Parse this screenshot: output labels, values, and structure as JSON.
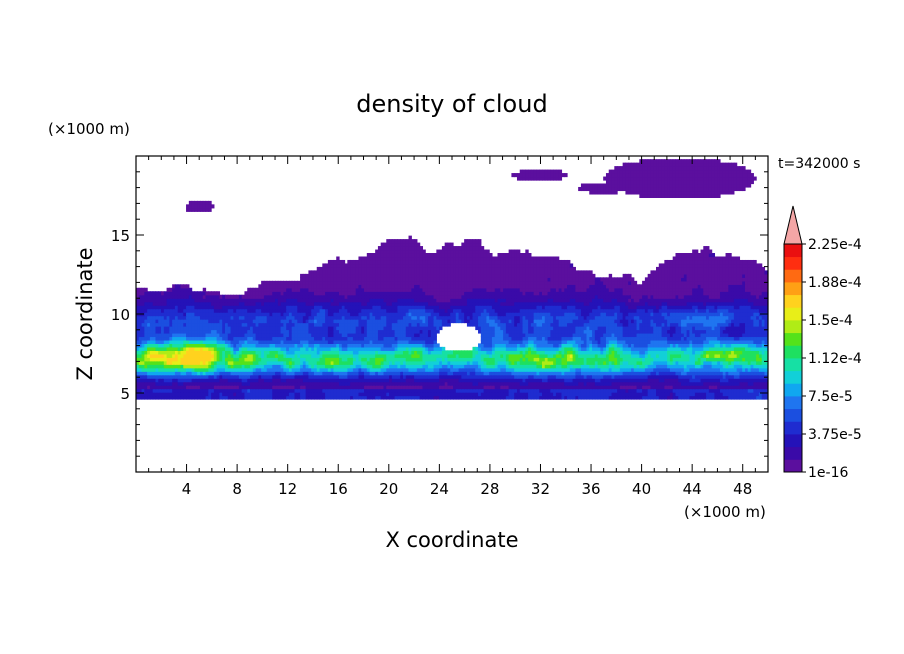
{
  "chart_data": {
    "type": "heatmap",
    "title": "density of cloud",
    "xlabel": "X coordinate",
    "ylabel": "Z coordinate",
    "x_unit": "(×1000 m)",
    "y_unit": "(×1000 m)",
    "time_label": "t=342000 s",
    "xlim": [
      0,
      50
    ],
    "ylim": [
      0,
      20
    ],
    "x_ticks": [
      4,
      8,
      12,
      16,
      20,
      24,
      28,
      32,
      36,
      40,
      44,
      48
    ],
    "y_ticks": [
      5,
      10,
      15
    ],
    "colorbar": {
      "levels_bottom_to_top": [
        "#5b0f9e",
        "#3a0aa8",
        "#2412b8",
        "#1f2cd0",
        "#1b4fe0",
        "#1f75f0",
        "#10a7f0",
        "#12d0d8",
        "#16e0a4",
        "#1ee060",
        "#54e21a",
        "#b0ec16",
        "#e8ee18",
        "#ffd21e",
        "#ffa015",
        "#ff6a12",
        "#ff2e10",
        "#ea0f10"
      ],
      "over_color": "#f4a6a6",
      "tick_labels": [
        "1e-16",
        "3.75e-5",
        "7.5e-5",
        "1.12e-4",
        "1.5e-4",
        "1.88e-4",
        "2.25e-4"
      ]
    },
    "field_description": {
      "x_range": [
        0,
        50
      ],
      "cloud_base_z": 4.6,
      "main_layer_peak_z": 7.2,
      "upper_thin_cloud_top_z": 16.5,
      "max_density_region": "x≈2–6, z≈7–8"
    }
  }
}
